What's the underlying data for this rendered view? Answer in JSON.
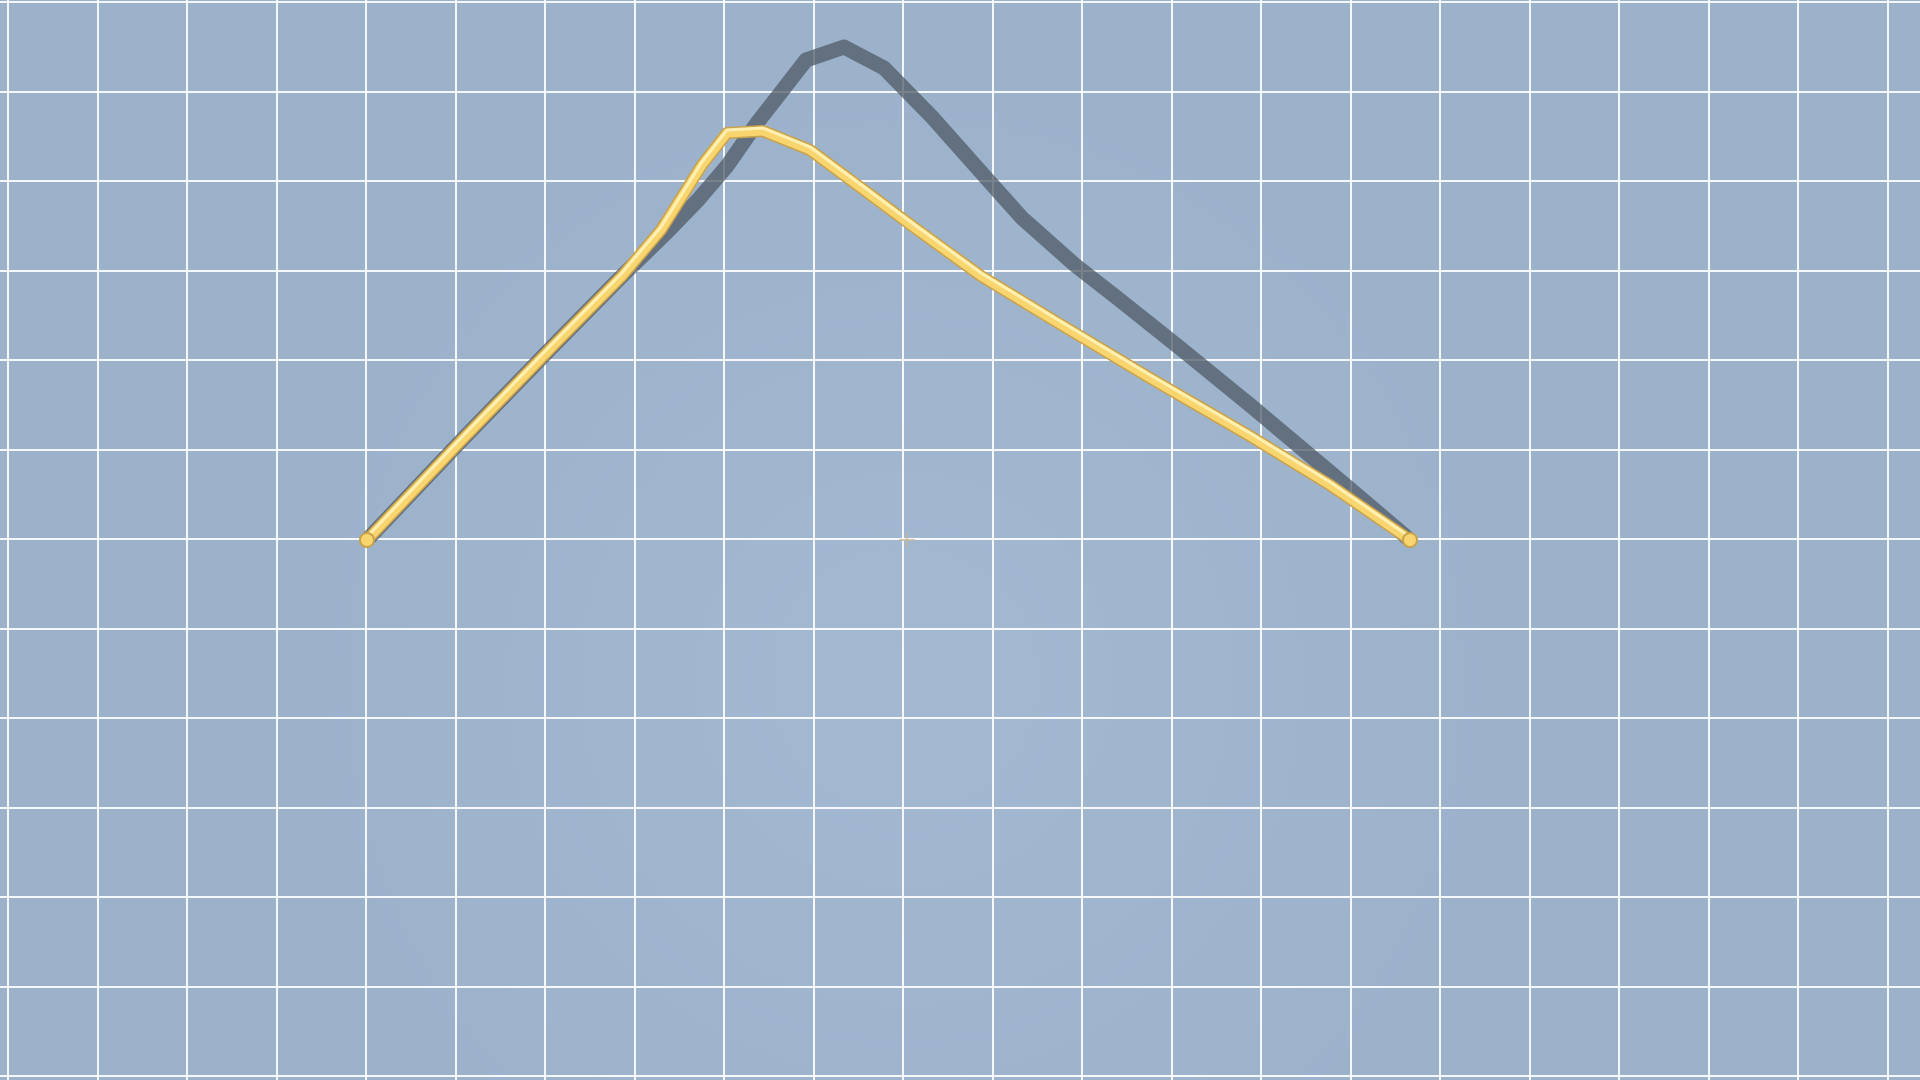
{
  "scene": {
    "background_color": "#9cb2cb",
    "vignette_center_color": "#a3b8d1",
    "grid_line_color": "#ffffff"
  },
  "wire": {
    "color": "#f8d56e",
    "highlight_color": "#fff4c0",
    "edge_color": "#c9a24a",
    "shadow_color": "#4f5a66"
  },
  "cursor": {
    "icon": "crosshair-cursor-icon",
    "color": "#c8b79a"
  }
}
